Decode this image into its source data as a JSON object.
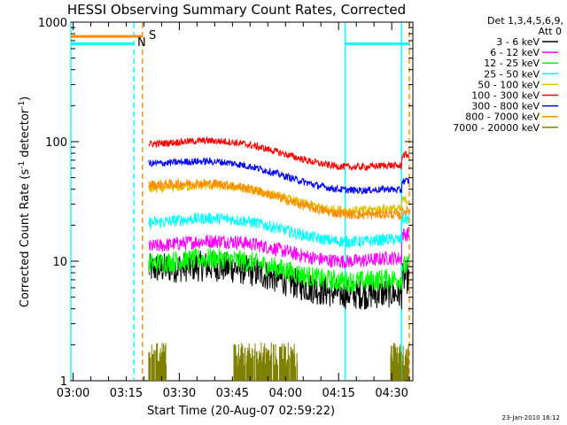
{
  "chart_data": {
    "type": "line",
    "title": "HESSI Observing Summary Count Rates, Corrected",
    "xlabel": "Start Time (20-Aug-07 02:59:22)",
    "ylabel_main": "Corrected Count Rate (s",
    "ylabel_sup1": "-1",
    "ylabel_mid": " detector",
    "ylabel_sup2": "-1",
    "ylabel_end": ")",
    "y_scale": "log",
    "ylim": [
      1,
      1000
    ],
    "xlim_minutes": [
      0,
      96.6
    ],
    "x_ticks": [
      {
        "label": "03:00",
        "minute": 0.63
      },
      {
        "label": "03:15",
        "minute": 15.63
      },
      {
        "label": "03:30",
        "minute": 30.63
      },
      {
        "label": "03:45",
        "minute": 45.63
      },
      {
        "label": "04:00",
        "minute": 60.63
      },
      {
        "label": "04:15",
        "minute": 75.63
      },
      {
        "label": "04:30",
        "minute": 90.63
      }
    ],
    "y_ticks": [
      {
        "label": "1",
        "value": 1
      },
      {
        "label": "10",
        "value": 10
      },
      {
        "label": "100",
        "value": 100
      },
      {
        "label": "1000",
        "value": 1000
      }
    ],
    "legend_header": [
      "Det 1,3,4,5,6,9,",
      "Att 0"
    ],
    "legend_position": "right",
    "x_data_range_minutes": [
      22.0,
      95.5
    ],
    "series": [
      {
        "name": "3 - 6 keV",
        "color": "#000000",
        "start": 9.5,
        "end": 5.3,
        "noise": 0.13,
        "jump": 1.35
      },
      {
        "name": "6 - 12 keV",
        "color": "#ff00ff",
        "start": 14.5,
        "end": 10.5,
        "noise": 0.06,
        "jump": 1.6
      },
      {
        "name": "12 - 25 keV",
        "color": "#00ff00",
        "start": 10.5,
        "end": 7.0,
        "noise": 0.09,
        "jump": 1.3
      },
      {
        "name": "25 - 50 keV",
        "color": "#00ffff",
        "start": 23.0,
        "end": 15.0,
        "noise": 0.05,
        "jump": 1.5
      },
      {
        "name": "50 - 100 keV",
        "color": "#e0c000",
        "start": 44.0,
        "end": 27.0,
        "noise": 0.04,
        "jump": 1.2
      },
      {
        "name": "100 - 300 keV",
        "color": "#ff0000",
        "start": 105.0,
        "end": 62.0,
        "noise": 0.03,
        "jump": 1.25
      },
      {
        "name": "300 - 800 keV",
        "color": "#0000ff",
        "start": 72.0,
        "end": 39.0,
        "noise": 0.03,
        "jump": 1.2
      },
      {
        "name": "800 - 7000 keV",
        "color": "#ff8c00",
        "start": 48.0,
        "end": 24.0,
        "noise": 0.04,
        "jump": 1.1
      },
      {
        "name": "7000 - 20000 keV",
        "color": "#808000",
        "start": 2.0,
        "end": 2.0,
        "noise": 0.0,
        "jump": 1.0
      }
    ],
    "annotations": [
      {
        "text": "S",
        "color": "#ff8c00"
      },
      {
        "text": "N",
        "color": "#00ffff"
      }
    ],
    "flag_lines": [
      {
        "label": "SAA",
        "color": "#ff8c00",
        "kind": "bar",
        "x0": 0.0,
        "x1": 20.2,
        "y": 760
      },
      {
        "label": "Night",
        "color": "#00ffff",
        "kind": "bar",
        "x0": 0.0,
        "x1": 17.8,
        "y": 660
      },
      {
        "label": "Night",
        "color": "#00ffff",
        "kind": "bar",
        "x0": 77.5,
        "x1": 95.6,
        "y": 660
      }
    ],
    "vertical_markers": [
      {
        "color": "#00ffff",
        "dashed": false,
        "minute": 0.0
      },
      {
        "color": "#00ffff",
        "dashed": true,
        "minute": 17.8
      },
      {
        "color": "#ff8c00",
        "dashed": true,
        "minute": 20.2
      },
      {
        "color": "#00ffff",
        "dashed": false,
        "minute": 77.5
      },
      {
        "color": "#00ffff",
        "dashed": false,
        "minute": 93.4
      },
      {
        "color": "#ff8c00",
        "dashed": true,
        "minute": 95.6
      }
    ],
    "timestamp": "23-Jan-2010 16:12"
  }
}
